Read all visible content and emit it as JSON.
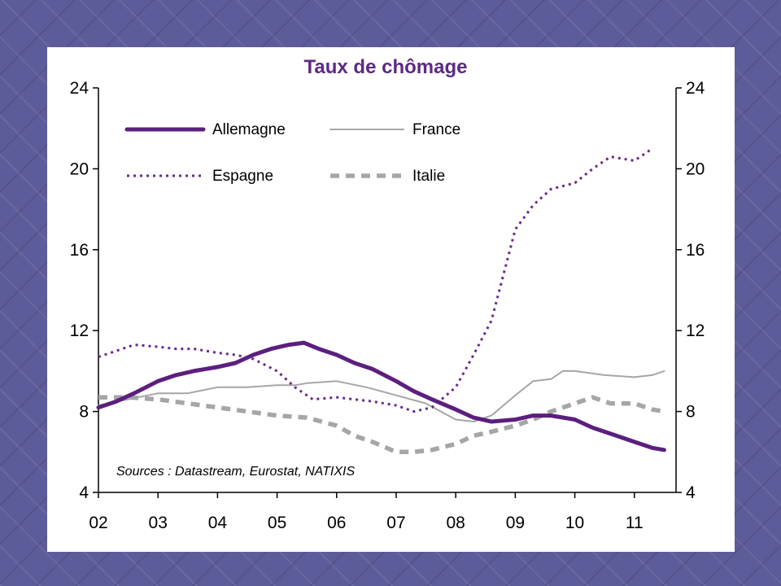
{
  "colors": {
    "slide_background": "#5d5c9b",
    "title": "#5b2b82",
    "allemagne": "#5b1f7e",
    "france": "#a6a6a6",
    "espagne": "#6a2a8e",
    "italie": "#a6a6a6"
  },
  "chart_data": {
    "type": "line",
    "title": "Taux de chômage",
    "source_note": "Sources : Datastream, Eurostat, NATIXIS",
    "xlabel": "",
    "ylabel": "",
    "x_ticks": [
      "02",
      "03",
      "04",
      "05",
      "06",
      "07",
      "08",
      "09",
      "10",
      "11"
    ],
    "y_ticks": [
      "4",
      "8",
      "12",
      "16",
      "20",
      "24"
    ],
    "right_y_ticks": [
      "4",
      "8",
      "12",
      "16",
      "20",
      "24"
    ],
    "ylim": [
      4,
      24
    ],
    "xlim": [
      2002,
      2011.7
    ],
    "grid": false,
    "legend_position": "top-left",
    "series": [
      {
        "name": "Allemagne",
        "style": "solid-thick",
        "x": [
          2002.0,
          2002.3,
          2002.6,
          2003.0,
          2003.3,
          2003.6,
          2004.0,
          2004.3,
          2004.6,
          2004.9,
          2005.2,
          2005.45,
          2005.7,
          2006.0,
          2006.3,
          2006.6,
          2007.0,
          2007.3,
          2007.6,
          2008.0,
          2008.3,
          2008.6,
          2009.0,
          2009.3,
          2009.6,
          2010.0,
          2010.3,
          2010.6,
          2011.0,
          2011.3,
          2011.5
        ],
        "values": [
          8.2,
          8.5,
          8.9,
          9.5,
          9.8,
          10.0,
          10.2,
          10.4,
          10.8,
          11.1,
          11.3,
          11.4,
          11.1,
          10.8,
          10.4,
          10.1,
          9.5,
          9.0,
          8.6,
          8.1,
          7.7,
          7.5,
          7.6,
          7.8,
          7.8,
          7.6,
          7.2,
          6.9,
          6.5,
          6.2,
          6.1
        ]
      },
      {
        "name": "France",
        "style": "solid-thin",
        "x": [
          2002.0,
          2002.5,
          2003.0,
          2003.5,
          2004.0,
          2004.5,
          2005.0,
          2005.3,
          2005.5,
          2006.0,
          2006.5,
          2007.0,
          2007.5,
          2008.0,
          2008.3,
          2008.6,
          2009.0,
          2009.3,
          2009.6,
          2009.8,
          2010.0,
          2010.5,
          2011.0,
          2011.3,
          2011.5
        ],
        "values": [
          8.3,
          8.6,
          8.9,
          8.9,
          9.2,
          9.2,
          9.3,
          9.3,
          9.4,
          9.5,
          9.2,
          8.8,
          8.4,
          7.6,
          7.5,
          7.8,
          8.8,
          9.5,
          9.6,
          10.0,
          10.0,
          9.8,
          9.7,
          9.8,
          10.0
        ]
      },
      {
        "name": "Espagne",
        "style": "dotted",
        "x": [
          2002.0,
          2002.3,
          2002.6,
          2003.0,
          2003.3,
          2003.6,
          2004.0,
          2004.3,
          2004.6,
          2005.0,
          2005.3,
          2005.6,
          2006.0,
          2006.3,
          2006.6,
          2007.0,
          2007.3,
          2007.6,
          2008.0,
          2008.3,
          2008.6,
          2009.0,
          2009.3,
          2009.6,
          2010.0,
          2010.3,
          2010.6,
          2011.0,
          2011.3
        ],
        "values": [
          10.7,
          11.0,
          11.3,
          11.2,
          11.1,
          11.1,
          10.9,
          10.8,
          10.6,
          10.0,
          9.2,
          8.6,
          8.7,
          8.6,
          8.5,
          8.3,
          8.0,
          8.2,
          9.2,
          10.8,
          12.5,
          17.0,
          18.2,
          19.0,
          19.3,
          20.0,
          20.6,
          20.4,
          21.0
        ]
      },
      {
        "name": "Italie",
        "style": "dashed-thick",
        "x": [
          2002.0,
          2002.5,
          2003.0,
          2003.5,
          2004.0,
          2004.5,
          2005.0,
          2005.5,
          2006.0,
          2006.3,
          2006.6,
          2007.0,
          2007.3,
          2007.6,
          2008.0,
          2008.3,
          2008.6,
          2009.0,
          2009.3,
          2009.6,
          2010.0,
          2010.3,
          2010.6,
          2011.0,
          2011.3,
          2011.5
        ],
        "values": [
          8.7,
          8.7,
          8.6,
          8.4,
          8.2,
          8.0,
          7.8,
          7.7,
          7.3,
          6.8,
          6.5,
          6.0,
          6.0,
          6.1,
          6.4,
          6.8,
          7.0,
          7.3,
          7.6,
          8.0,
          8.4,
          8.7,
          8.4,
          8.4,
          8.1,
          8.0
        ]
      }
    ]
  }
}
